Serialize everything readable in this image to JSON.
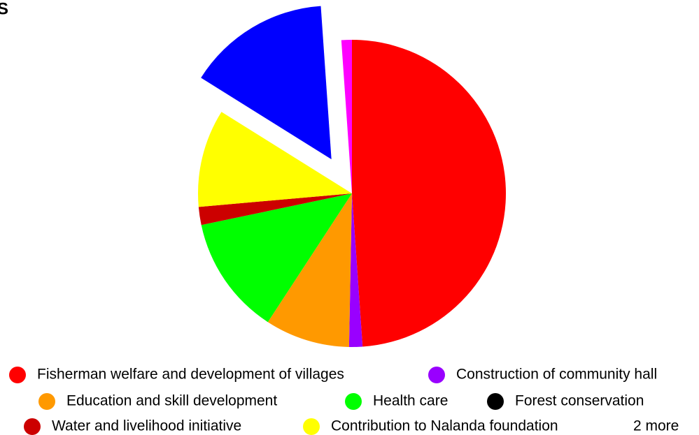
{
  "chart_data": {
    "type": "pie",
    "title": "S",
    "categories": [
      "Fisherman welfare and development of villages",
      "Construction of community hall",
      "Education and skill development",
      "Health care",
      "Forest conservation",
      "Water and livelihood initiative",
      "Contribution to Nalanda foundation",
      null,
      null
    ],
    "values": [
      48.9,
      1.4,
      8.9,
      12.5,
      0,
      1.9,
      10.3,
      15,
      1.1
    ],
    "colors": [
      "#ff0000",
      "#9900ff",
      "#ff9900",
      "#00ff00",
      "#000000",
      "#cc0000",
      "#ffff00",
      "#0000ff",
      "#ff00ff"
    ],
    "exploded": [
      7
    ],
    "legend": "bottom",
    "legend_more": "2 more"
  }
}
